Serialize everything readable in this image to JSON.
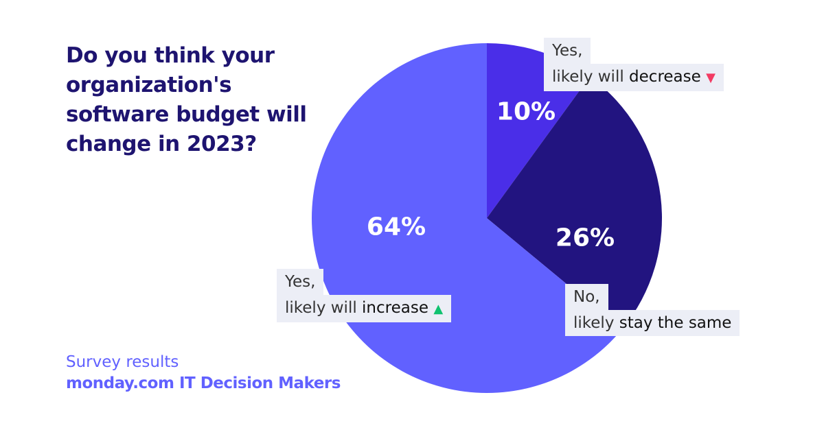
{
  "title": "Do you think your organization's software budget will change in 2023?",
  "footer": {
    "line1": "Survey results",
    "line2": "monday.com IT Decision Makers"
  },
  "chart_data": {
    "type": "pie",
    "title": "Do you think your organization's software budget will change in 2023?",
    "start": "12 o'clock, clockwise",
    "slices": [
      {
        "label": "Yes, likely will decrease",
        "value": 10,
        "display": "10%",
        "color": "#4a2ee8",
        "line1": "Yes,",
        "line2a": "likely will ",
        "line2b": "decrease",
        "marker": "▼"
      },
      {
        "label": "No, likely stay the same",
        "value": 26,
        "display": "26%",
        "color": "#221480",
        "line1": "No,",
        "line2a": "likely ",
        "line2b": "stay the same",
        "marker": ""
      },
      {
        "label": "Yes, likely will increase",
        "value": 64,
        "display": "64%",
        "color": "#6161ff",
        "line1": "Yes,",
        "line2a": "likely will ",
        "line2b": "increase",
        "marker": "▲"
      }
    ]
  }
}
